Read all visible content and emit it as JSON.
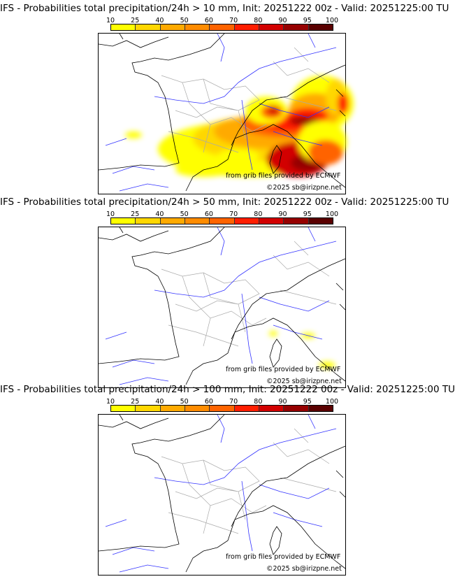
{
  "colorbar": {
    "ticks": [
      "10",
      "25",
      "40",
      "50",
      "60",
      "70",
      "80",
      "90",
      "95",
      "100"
    ],
    "colors": [
      "#ffff00",
      "#ffd700",
      "#ffaa00",
      "#ff8c00",
      "#ff6400",
      "#ff1e00",
      "#d20000",
      "#960000",
      "#5a0000"
    ]
  },
  "panels": [
    {
      "title": "IFS - Probabilities total precipitation/24h > 10 mm, Init: 20251222 00z - Valid: 20251225:00 TU",
      "threshold_mm": 10
    },
    {
      "title": "IFS - Probabilities total precipitation/24h > 50 mm, Init: 20251222 00z - Valid: 20251225:00 TU",
      "threshold_mm": 50
    },
    {
      "title": "IFS - Probabilities total precipitation/24h > 100 mm, Init: 20251222 00z - Valid: 20251225:00 TU",
      "threshold_mm": 100
    }
  ],
  "credits": {
    "source": "from grib files provided by ECMWF",
    "copyright": "©2025 sb@irizpne.net"
  }
}
